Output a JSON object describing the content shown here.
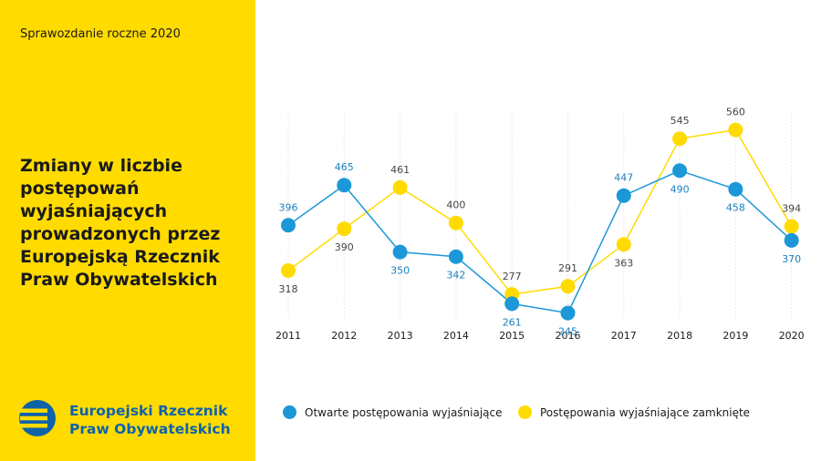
{
  "report_label": "Sprawozdanie roczne 2020",
  "title": "Zmiany w liczbie postępowań wyjaśniających prowadzonych przez Europejską Rzecznik Praw Obywatelskich",
  "org": {
    "line1": "Europejski Rzecznik",
    "line2": "Praw Obywatelskich"
  },
  "colors": {
    "sidebar": "#FFDB00",
    "series_open": "#1C98D8",
    "series_closed": "#FFDB00",
    "org_text": "#0f63a8"
  },
  "chart_data": {
    "type": "line",
    "x": [
      "2011",
      "2012",
      "2013",
      "2014",
      "2015",
      "2016",
      "2017",
      "2018",
      "2019",
      "2020"
    ],
    "series": [
      {
        "name": "Otwarte postępowania wyjaśniające",
        "values": [
          396,
          465,
          350,
          342,
          261,
          245,
          447,
          490,
          458,
          370
        ],
        "color": "#1C98D8"
      },
      {
        "name": "Postępowania wyjaśniające zamknięte",
        "values": [
          318,
          390,
          461,
          400,
          277,
          291,
          363,
          545,
          560,
          394
        ],
        "color": "#FFDB00"
      }
    ],
    "grid": "vertical",
    "legend": "bottom"
  }
}
